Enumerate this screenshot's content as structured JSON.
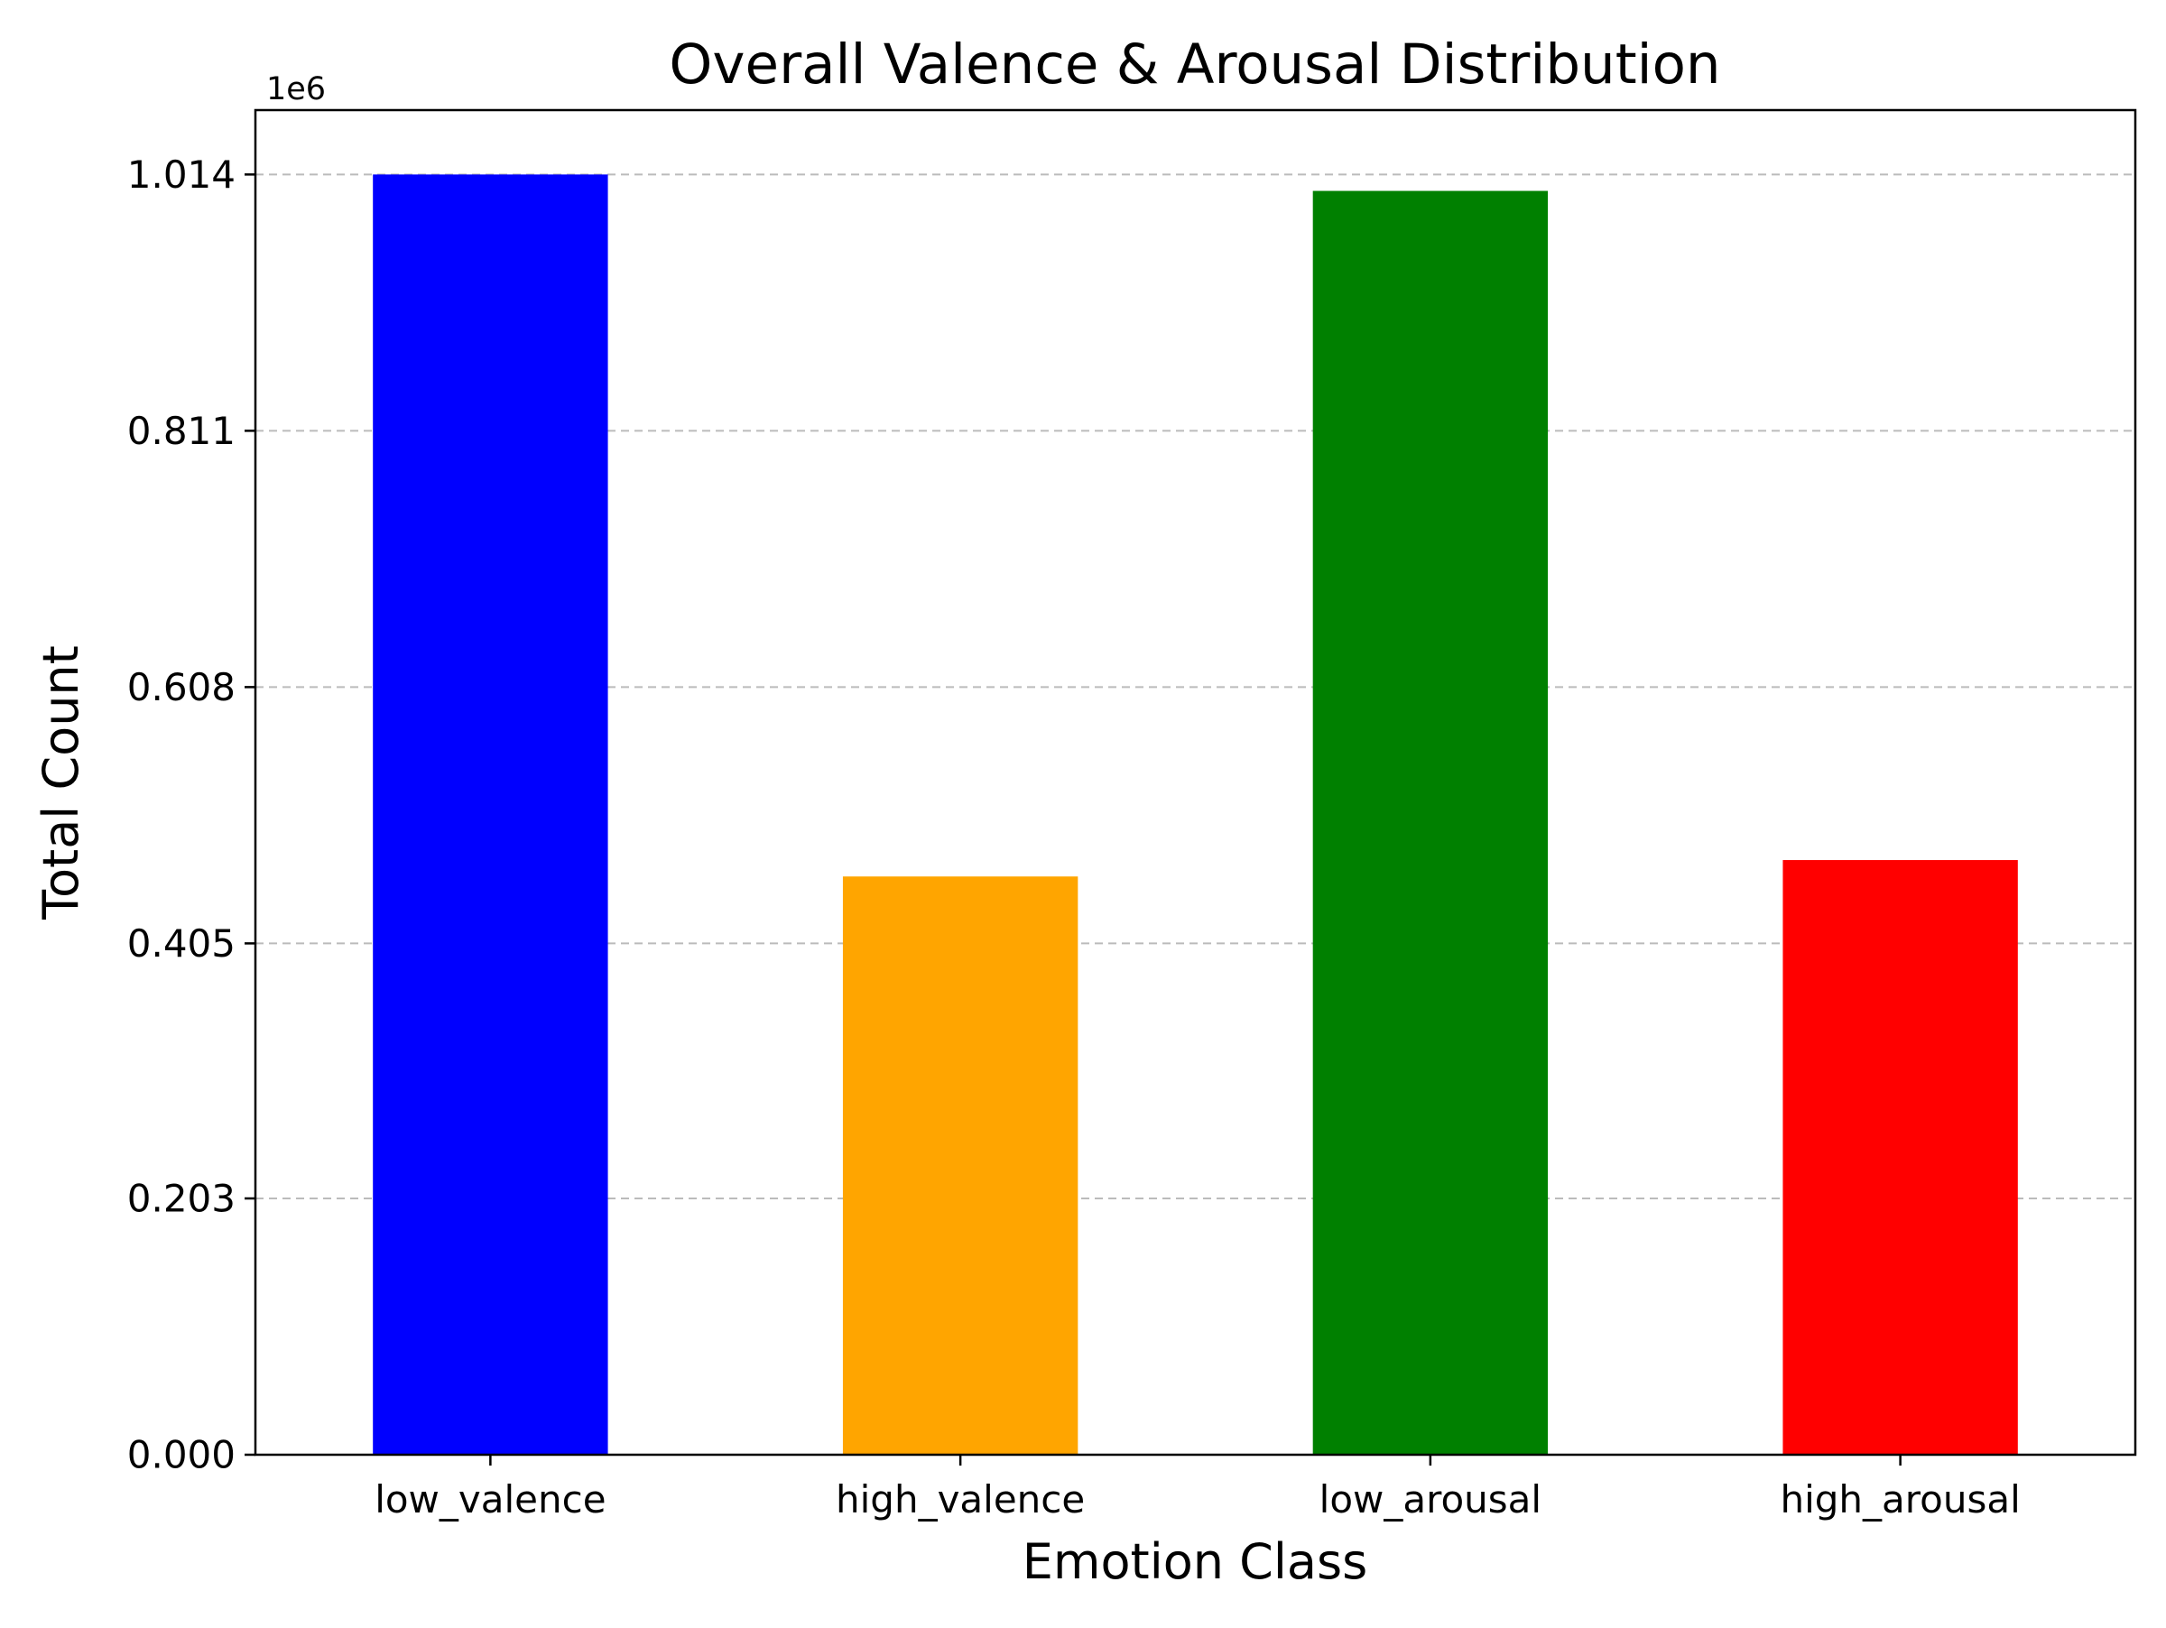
{
  "chart_data": {
    "type": "bar",
    "title": "Overall Valence & Arousal Distribution",
    "xlabel": "Emotion Class",
    "ylabel": "Total Count",
    "y_offset_label": "1e6",
    "categories": [
      "low_valence",
      "high_valence",
      "low_arousal",
      "high_arousal"
    ],
    "values": [
      1014000,
      458000,
      1001000,
      471000
    ],
    "colors": [
      "#0000ff",
      "#ffa500",
      "#008000",
      "#ff0000"
    ],
    "y_ticks": [
      0,
      0.203,
      0.405,
      0.608,
      0.811,
      1.014
    ],
    "y_tick_labels": [
      "0.000",
      "0.203",
      "0.405",
      "0.608",
      "0.811",
      "1.014"
    ],
    "y_scale": 1000000,
    "ylim": [
      0,
      1065000
    ],
    "grid": "y-dashed"
  }
}
